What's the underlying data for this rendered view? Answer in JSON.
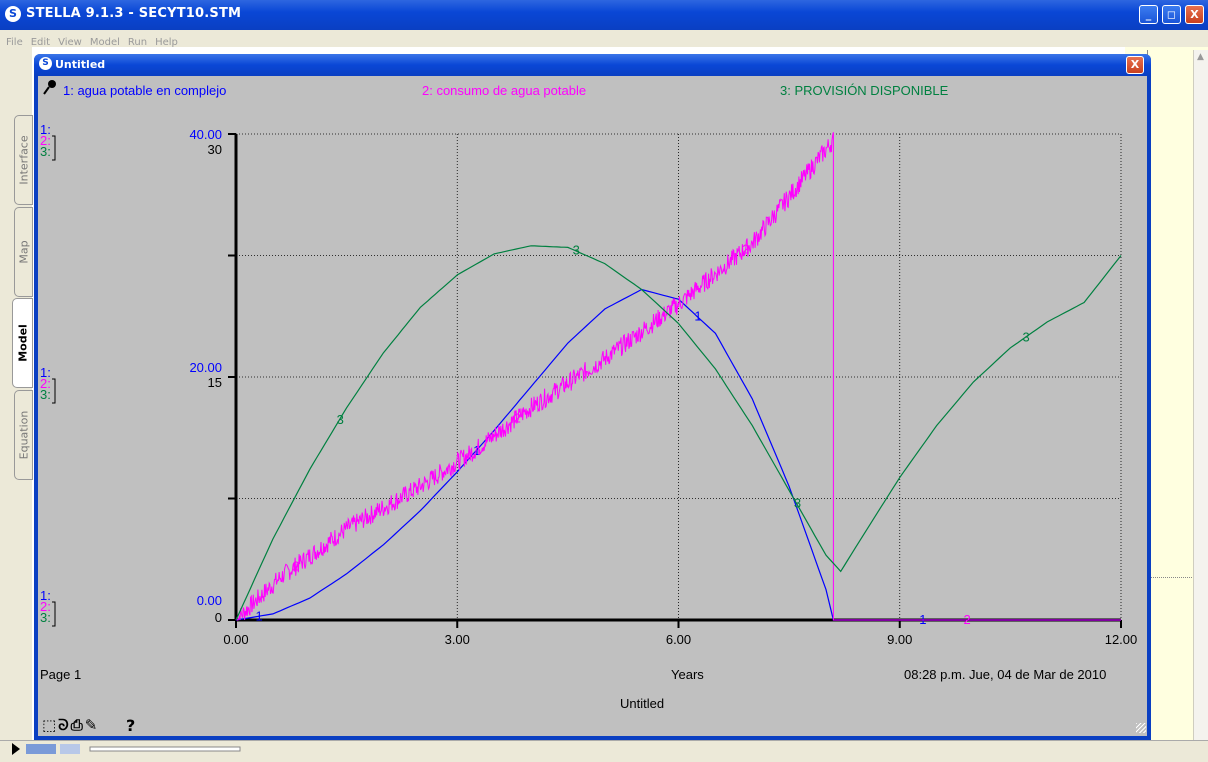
{
  "app": {
    "icon_glyph": "S",
    "title": "STELLA 9.1.3 - SECYT10.STM",
    "controls": {
      "minimize": "_",
      "maximize": "◻",
      "close": "X"
    }
  },
  "menu": [
    "File",
    "Edit",
    "View",
    "Model",
    "Run",
    "Help"
  ],
  "side_tabs": [
    "Interface",
    "Map",
    "Model",
    "Equation"
  ],
  "graph_window": {
    "icon_glyph": "S",
    "title": "Untitled",
    "close": "X"
  },
  "legend": {
    "items": [
      {
        "label": "1: agua potable en complejo",
        "color": "#0000ff"
      },
      {
        "label": "2: consumo de agua potable",
        "color": "#ff00ff"
      },
      {
        "label": "3: PROVISIÓN DISPONIBLE",
        "color": "#008040"
      }
    ]
  },
  "footer": {
    "page": "Page 1",
    "x_unit": "Years",
    "timestamp": "08:28 p.m.   Jue, 04 de Mar de 2010",
    "graph_name": "Untitled",
    "tools": "⬚ᘐ⎙✎",
    "help": "?"
  },
  "chart_data": {
    "type": "line",
    "x": {
      "label": "Years",
      "range": [
        0,
        12
      ],
      "ticks": [
        "0.00",
        "3.00",
        "6.00",
        "9.00",
        "12.00"
      ]
    },
    "axes": [
      {
        "series": 1,
        "color": "#0000ff",
        "range": [
          0,
          40
        ],
        "labels": {
          "top": "40.00",
          "mid": "20.00",
          "bottom": "0.00"
        }
      },
      {
        "series": 2,
        "color": "#ff00ff",
        "range": [
          0,
          40
        ],
        "labels": {
          "top": "",
          "mid": "",
          "bottom": ""
        }
      },
      {
        "series": 3,
        "color": "#008040",
        "range": [
          0,
          30
        ],
        "labels": {
          "top": "30",
          "mid": "15",
          "bottom": "0"
        }
      }
    ],
    "axis_key": {
      "series": [
        "1:",
        "2:",
        "3:"
      ]
    },
    "grid": true,
    "series": [
      {
        "id": "1",
        "name": "agua potable en complejo",
        "color": "#0000ff",
        "axis": 0,
        "points": [
          [
            0,
            0
          ],
          [
            0.5,
            0.5
          ],
          [
            1,
            1.8
          ],
          [
            1.5,
            3.8
          ],
          [
            2,
            6.2
          ],
          [
            2.5,
            9
          ],
          [
            3,
            12.2
          ],
          [
            3.5,
            15.6
          ],
          [
            4,
            19.2
          ],
          [
            4.5,
            22.8
          ],
          [
            5,
            25.6
          ],
          [
            5.5,
            27.2
          ],
          [
            6,
            26.4
          ],
          [
            6.5,
            23.6
          ],
          [
            7,
            18.2
          ],
          [
            7.5,
            11
          ],
          [
            8,
            2.5
          ],
          [
            8.1,
            0
          ],
          [
            12,
            0
          ]
        ],
        "markers": [
          0.3,
          3.25,
          6.25,
          9.3
        ]
      },
      {
        "id": "2",
        "name": "consumo de agua potable",
        "color": "#ff00ff",
        "axis": 1,
        "points": [
          [
            0,
            0
          ],
          [
            0.6,
            3.5
          ],
          [
            1.5,
            7.5
          ],
          [
            2.5,
            11
          ],
          [
            3.2,
            13.8
          ],
          [
            4,
            17.5
          ],
          [
            5,
            21.5
          ],
          [
            6,
            26
          ],
          [
            7,
            31
          ],
          [
            8.1,
            39.5
          ],
          [
            8.11,
            0
          ],
          [
            12,
            0
          ]
        ],
        "noisy_until": 8.1,
        "markers": [
          0.8,
          3.8,
          6.9,
          9.9
        ]
      },
      {
        "id": "3",
        "name": "PROVISIÓN DISPONIBLE",
        "color": "#008040",
        "axis": 2,
        "points": [
          [
            0,
            0
          ],
          [
            0.5,
            5
          ],
          [
            1,
            9.3
          ],
          [
            1.5,
            13.1
          ],
          [
            2,
            16.5
          ],
          [
            2.5,
            19.3
          ],
          [
            3,
            21.3
          ],
          [
            3.5,
            22.6
          ],
          [
            4,
            23.1
          ],
          [
            4.5,
            23
          ],
          [
            5,
            22
          ],
          [
            5.5,
            20.4
          ],
          [
            6,
            18.3
          ],
          [
            6.5,
            15.5
          ],
          [
            7,
            12
          ],
          [
            7.5,
            8
          ],
          [
            8,
            4
          ],
          [
            8.2,
            3
          ],
          [
            8.5,
            5.2
          ],
          [
            9,
            8.8
          ],
          [
            9.5,
            12
          ],
          [
            10,
            14.7
          ],
          [
            10.5,
            16.8
          ],
          [
            11,
            18.4
          ],
          [
            11.5,
            19.6
          ],
          [
            12,
            22.5
          ]
        ],
        "markers": [
          1.4,
          4.6,
          7.6,
          10.7
        ]
      }
    ]
  }
}
